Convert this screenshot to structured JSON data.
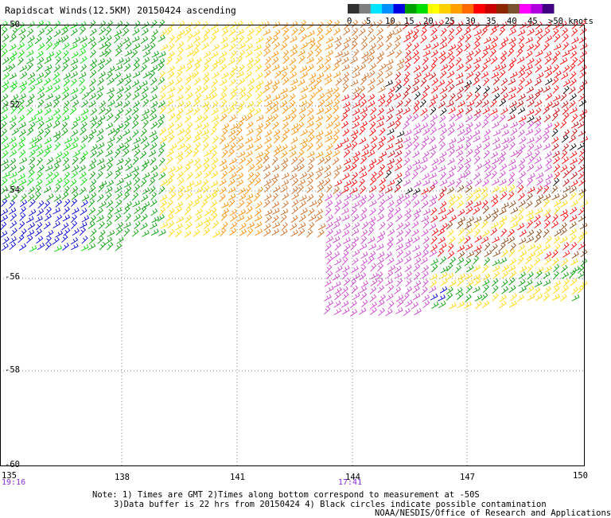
{
  "title": "Rapidscat Winds(12.5KM) 20150424 ascending",
  "color_scale": {
    "colors": [
      "#303030",
      "#7f7f7f",
      "#00e5ff",
      "#0090ff",
      "#0000e0",
      "#00a000",
      "#00dd00",
      "#ffff00",
      "#ffd000",
      "#ffa000",
      "#ff6a00",
      "#ff0000",
      "#c80000",
      "#8b2500",
      "#7a5230",
      "#ff00ff",
      "#b000e0",
      "#400080"
    ],
    "labels": [
      "0",
      "5",
      "10",
      "15",
      "20",
      "25",
      "30",
      "35",
      "40",
      "45",
      ">50 knots"
    ]
  },
  "axes": {
    "lat_labels": [
      "-50",
      "-52",
      "-54",
      "-56",
      "-58",
      "-60"
    ],
    "lon_labels": [
      "135",
      "138",
      "141",
      "144",
      "147",
      "150"
    ]
  },
  "times": {
    "left": "19:16",
    "middle": "17:41"
  },
  "notes": {
    "line1": "Note: 1) Times are GMT 2)Times along bottom correspond to measurement at -50S",
    "line2": "3)Data buffer is 22 hrs from 20150424 4) Black circles indicate possible contamination",
    "line3": "NOAA/NESDIS/Office of Research and Applications"
  },
  "colors": {
    "black": "#000000",
    "blue": "#0000e0",
    "green": "#00a000",
    "lightgreen": "#00dd00",
    "yellow": "#ffd700",
    "orange": "#ff8c00",
    "darkorange": "#d2691e",
    "red": "#ff0000",
    "darkred": "#c80000",
    "brown": "#8b4513",
    "magenta": "#d040d0"
  }
}
